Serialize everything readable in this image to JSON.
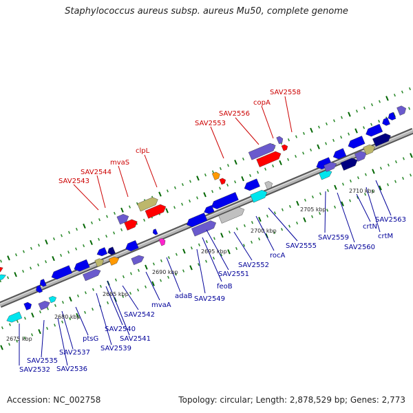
{
  "title": "Staphylococcus aureus subsp. aureus Mu50, complete genome",
  "accession": "Accession: NC_002758",
  "topology": "Topology: circular; Length: 2,878,529 bp; Genes: 2,773",
  "colors": {
    "red": "#ff0000",
    "blue": "#0000ee",
    "navy": "#000080",
    "purple": "#6a5acd",
    "gray": "#c0c0c0",
    "olive": "#bdb76b",
    "cyan": "#00e5ee",
    "orange": "#ff9900",
    "magenta": "#ff22cc",
    "green-tick": "#006600",
    "label-red": "#cc0000",
    "label-blue": "#000099"
  },
  "upper_labels": [
    "SAV2543",
    "SAV2544",
    "mvaS",
    "clpL",
    "SAV2553",
    "SAV2556",
    "copA",
    "SAV2558"
  ],
  "lower_labels": [
    "SAV2532",
    "SAV2535",
    "SAV2536",
    "SAV2537",
    "ptsG",
    "SAV2539",
    "SAV2540",
    "SAV2541",
    "SAV2542",
    "mvaA",
    "adaB",
    "SAV2549",
    "feoB",
    "SAV2551",
    "SAV2552",
    "rocA",
    "SAV2555",
    "SAV2559",
    "SAV2560",
    "crtN",
    "crtM",
    "SAV2563"
  ],
  "kbp_ticks": [
    "2675 kbp",
    "2680 kbp",
    "2685 kbp",
    "2690 kbp",
    "2695 kbp",
    "2700 kbp",
    "2705 kbp",
    "2710 kbp"
  ]
}
